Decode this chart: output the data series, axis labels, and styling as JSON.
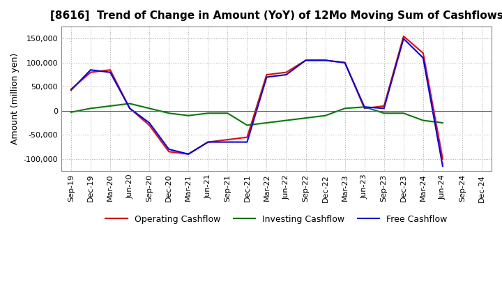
{
  "title": "[8616]  Trend of Change in Amount (YoY) of 12Mo Moving Sum of Cashflows",
  "ylabel": "Amount (million yen)",
  "title_fontsize": 11,
  "label_fontsize": 9,
  "tick_fontsize": 8,
  "background_color": "#ffffff",
  "grid_color": "#aaaaaa",
  "x_labels": [
    "Sep-19",
    "Dec-19",
    "Mar-20",
    "Jun-20",
    "Sep-20",
    "Dec-20",
    "Mar-21",
    "Jun-21",
    "Sep-21",
    "Dec-21",
    "Mar-22",
    "Jun-22",
    "Sep-22",
    "Dec-22",
    "Mar-23",
    "Jun-23",
    "Sep-23",
    "Dec-23",
    "Mar-24",
    "Jun-24",
    "Sep-24",
    "Dec-24"
  ],
  "operating": [
    45000,
    80000,
    85000,
    5000,
    -30000,
    -85000,
    -90000,
    -65000,
    -60000,
    -55000,
    75000,
    80000,
    105000,
    105000,
    100000,
    5000,
    10000,
    155000,
    120000,
    -100000,
    null,
    null
  ],
  "investing": [
    -3000,
    5000,
    10000,
    15000,
    5000,
    -5000,
    -10000,
    -5000,
    -5000,
    -30000,
    -25000,
    -20000,
    -15000,
    -10000,
    5000,
    8000,
    -5000,
    -5000,
    -20000,
    -25000,
    null,
    null
  ],
  "free": [
    43000,
    85000,
    80000,
    5000,
    -25000,
    -80000,
    -90000,
    -65000,
    -65000,
    -65000,
    70000,
    75000,
    105000,
    105000,
    100000,
    8000,
    5000,
    150000,
    110000,
    -115000,
    null,
    null
  ],
  "ylim": [
    -125000,
    175000
  ],
  "yticks": [
    -100000,
    -50000,
    0,
    50000,
    100000,
    150000
  ],
  "operating_color": "#ff0000",
  "investing_color": "#008000",
  "free_color": "#0000ff",
  "line_width": 1.5
}
